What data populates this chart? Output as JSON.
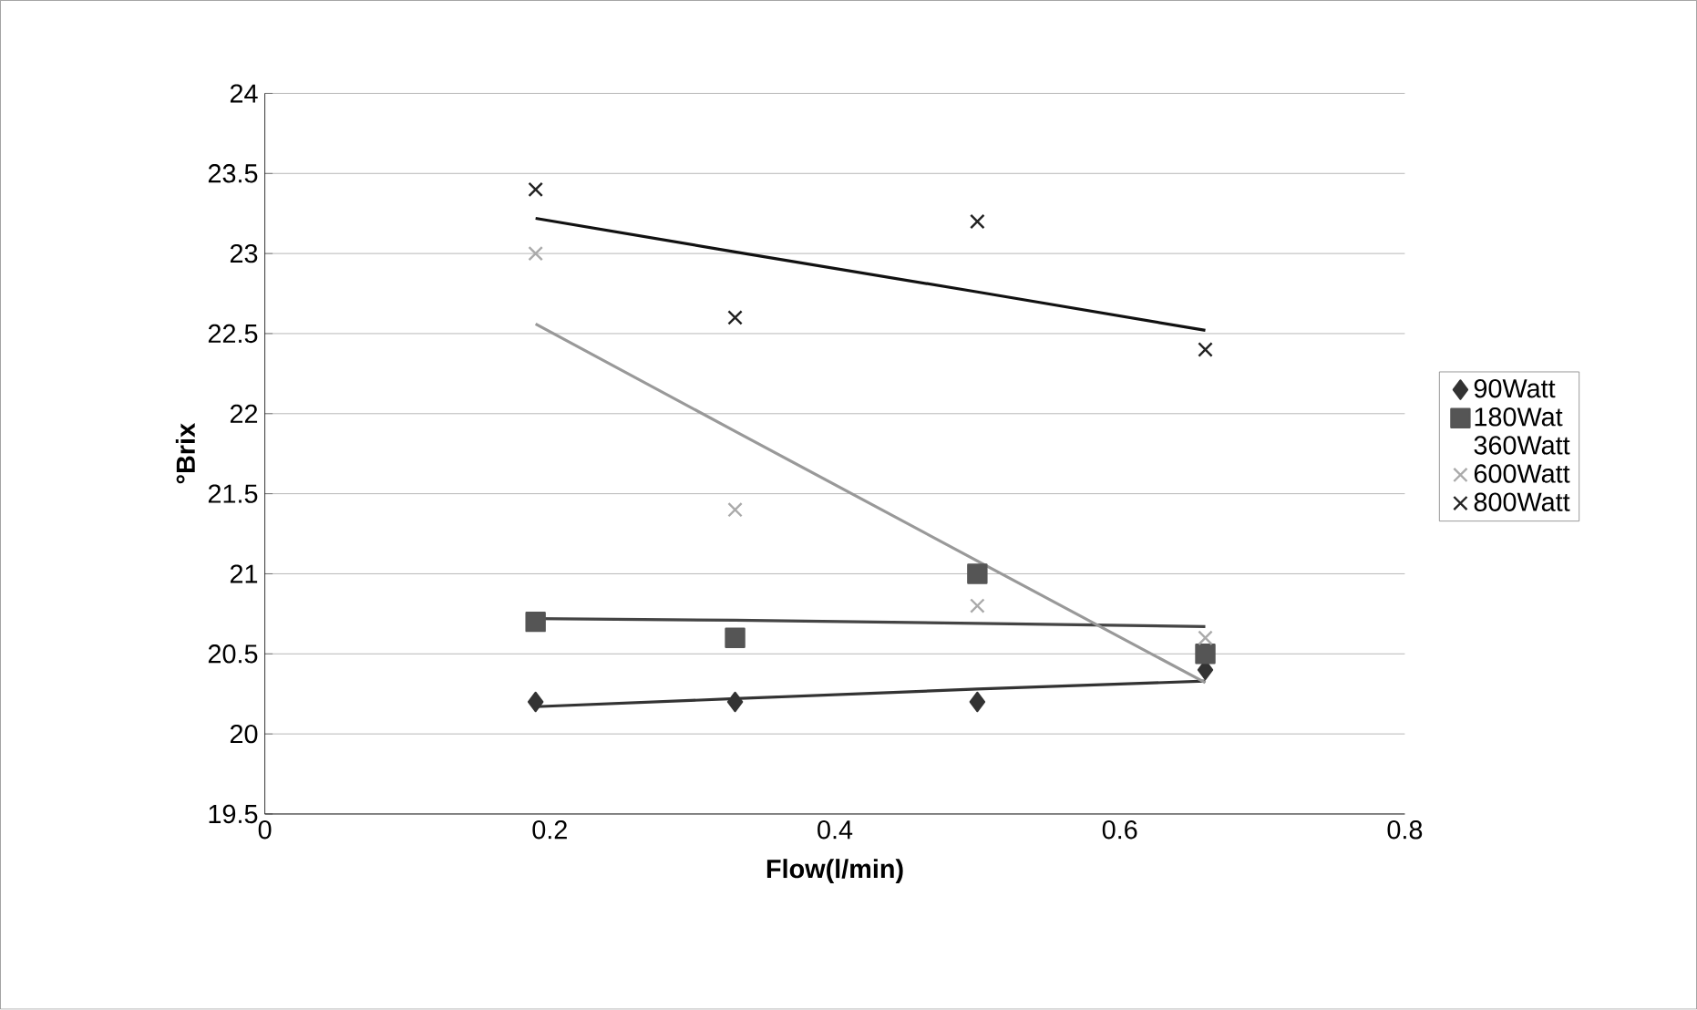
{
  "chart_data": {
    "type": "scatter",
    "xlabel": "Flow(l/min)",
    "ylabel": "°Brix",
    "x": [
      0.19,
      0.33,
      0.5,
      0.66
    ],
    "series": [
      {
        "name": "90Watt",
        "color": "#333333",
        "marker": "diamond",
        "values": [
          20.2,
          20.2,
          20.2,
          20.4
        ]
      },
      {
        "name": "180Wat",
        "color": "#555555",
        "marker": "square",
        "values": [
          20.7,
          20.6,
          21.0,
          20.5
        ]
      },
      {
        "name": "360Watt",
        "values": [
          null,
          null,
          null,
          null
        ]
      },
      {
        "name": "600Watt",
        "color": "#aaaaaa",
        "marker": "cross",
        "values": [
          23.0,
          21.4,
          20.8,
          20.6
        ]
      },
      {
        "name": "800Watt",
        "color": "#222222",
        "marker": "cross",
        "values": [
          23.4,
          22.6,
          23.2,
          22.4
        ]
      },
      {
        "type": "line",
        "color": "#333333",
        "values": [
          20.17,
          20.22,
          20.28,
          20.33
        ]
      },
      {
        "type": "line",
        "color": "#444444",
        "values": [
          20.72,
          20.71,
          20.69,
          20.67
        ]
      },
      {
        "type": "line",
        "color": "#999999",
        "values": [
          22.56,
          21.89,
          21.08,
          20.32
        ]
      },
      {
        "type": "line",
        "color": "#111111",
        "values": [
          23.22,
          23.01,
          22.76,
          22.52
        ]
      }
    ],
    "xlim": [
      0,
      0.8
    ],
    "xticks": [
      0,
      0.2,
      0.4,
      0.6,
      0.8
    ],
    "ylim": [
      19.5,
      24
    ],
    "yticks": [
      19.5,
      20,
      20.5,
      21,
      21.5,
      22,
      22.5,
      23,
      23.5,
      24
    ],
    "grid": "y",
    "legend": "right"
  }
}
